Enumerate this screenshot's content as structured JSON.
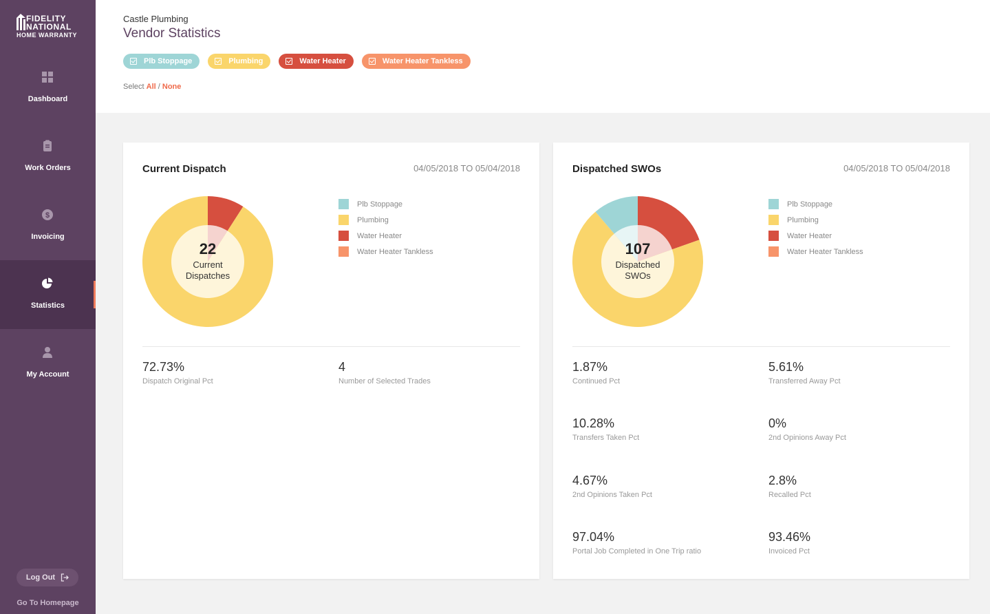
{
  "sidebar": {
    "logo": {
      "line1": "FIDELITY",
      "line2": "NATIONAL",
      "line3": "HOME WARRANTY"
    },
    "items": [
      {
        "label": "Dashboard",
        "icon": "grid-icon"
      },
      {
        "label": "Work Orders",
        "icon": "clipboard-icon"
      },
      {
        "label": "Invoicing",
        "icon": "dollar-icon"
      },
      {
        "label": "Statistics",
        "icon": "pie-chart-icon",
        "active": true
      },
      {
        "label": "My Account",
        "icon": "user-icon"
      }
    ],
    "logout_label": "Log Out",
    "homepage_label": "Go To Homepage"
  },
  "header": {
    "vendor": "Castle Plumbing",
    "title": "Vendor Statistics",
    "filters": [
      {
        "label": "Plb Stoppage",
        "color": "#9ed5d6",
        "checked": true
      },
      {
        "label": "Plumbing",
        "color": "#fad56b",
        "checked": true
      },
      {
        "label": "Water Heater",
        "color": "#d64f3f",
        "checked": true
      },
      {
        "label": "Water Heater Tankless",
        "color": "#f7946a",
        "checked": true
      }
    ],
    "select_prefix": "Select",
    "select_all": "All",
    "select_sep": "/",
    "select_none": "None"
  },
  "current_dispatch": {
    "title": "Current Dispatch",
    "dates": "04/05/2018 TO 05/04/2018",
    "center_value": "22",
    "center_label_1": "Current",
    "center_label_2": "Dispatches",
    "legend": [
      "Plb Stoppage",
      "Plumbing",
      "Water Heater",
      "Water Heater Tankless"
    ],
    "stats": [
      {
        "value": "72.73%",
        "label": "Dispatch Original Pct"
      },
      {
        "value": "4",
        "label": "Number of Selected Trades"
      }
    ]
  },
  "dispatched_swos": {
    "title": "Dispatched SWOs",
    "dates": "04/05/2018 TO 05/04/2018",
    "center_value": "107",
    "center_label_1": "Dispatched",
    "center_label_2": "SWOs",
    "legend": [
      "Plb Stoppage",
      "Plumbing",
      "Water Heater",
      "Water Heater Tankless"
    ],
    "stats": [
      {
        "value": "1.87%",
        "label": "Continued Pct"
      },
      {
        "value": "5.61%",
        "label": "Transferred Away Pct"
      },
      {
        "value": "10.28%",
        "label": "Transfers Taken Pct"
      },
      {
        "value": "0%",
        "label": "2nd Opinions Away Pct"
      },
      {
        "value": "4.67%",
        "label": "2nd Opinions Taken Pct"
      },
      {
        "value": "2.8%",
        "label": "Recalled Pct"
      },
      {
        "value": "97.04%",
        "label": "Portal Job Completed in One Trip ratio"
      },
      {
        "value": "93.46%",
        "label": "Invoiced Pct"
      }
    ]
  },
  "chart_data": [
    {
      "type": "pie",
      "title": "Current Dispatch",
      "categories": [
        "Plb Stoppage",
        "Plumbing",
        "Water Heater",
        "Water Heater Tankless"
      ],
      "values": [
        0,
        90.9,
        9.1,
        0
      ],
      "colors": [
        "#9ed5d6",
        "#fad56b",
        "#d64f3f",
        "#f7946a"
      ]
    },
    {
      "type": "pie",
      "title": "Dispatched SWOs",
      "categories": [
        "Plb Stoppage",
        "Plumbing",
        "Water Heater",
        "Water Heater Tankless"
      ],
      "values": [
        11.2,
        69.2,
        19.6,
        0
      ],
      "colors": [
        "#9ed5d6",
        "#fad56b",
        "#d64f3f",
        "#f7946a"
      ]
    }
  ]
}
